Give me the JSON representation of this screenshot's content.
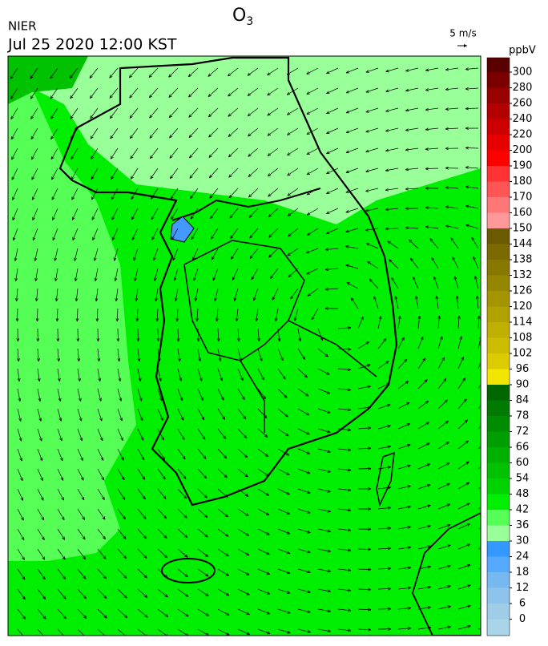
{
  "header": {
    "agency": "NIER",
    "datetime": "Jul 25 2020 12:00 KST",
    "title": "O",
    "title_subscript": "3"
  },
  "wind_reference": "5 m/s",
  "colorbar": {
    "unit": "ppbV",
    "ticks": [
      300,
      280,
      260,
      240,
      220,
      200,
      190,
      180,
      170,
      160,
      150,
      144,
      138,
      132,
      126,
      120,
      114,
      108,
      102,
      96,
      90,
      84,
      78,
      72,
      66,
      60,
      54,
      48,
      42,
      36,
      30,
      24,
      18,
      12,
      6,
      0
    ],
    "colors": [
      "#5a0000",
      "#7a0000",
      "#990000",
      "#b30000",
      "#cc0000",
      "#e60000",
      "#ff0000",
      "#ff3333",
      "#ff5555",
      "#ff7777",
      "#ff9999",
      "#6b5a00",
      "#7a6a00",
      "#877800",
      "#958600",
      "#a39400",
      "#b1a200",
      "#bfb000",
      "#cdbd00",
      "#dccb00",
      "#f2e600",
      "#006600",
      "#007a00",
      "#008c00",
      "#009e00",
      "#00b000",
      "#00c200",
      "#00d400",
      "#00ee00",
      "#55ff55",
      "#99ff99",
      "#3399ff",
      "#55aaff",
      "#77b8f0",
      "#8ec4ec",
      "#9fcde8",
      "#aad4e8"
    ]
  }
}
